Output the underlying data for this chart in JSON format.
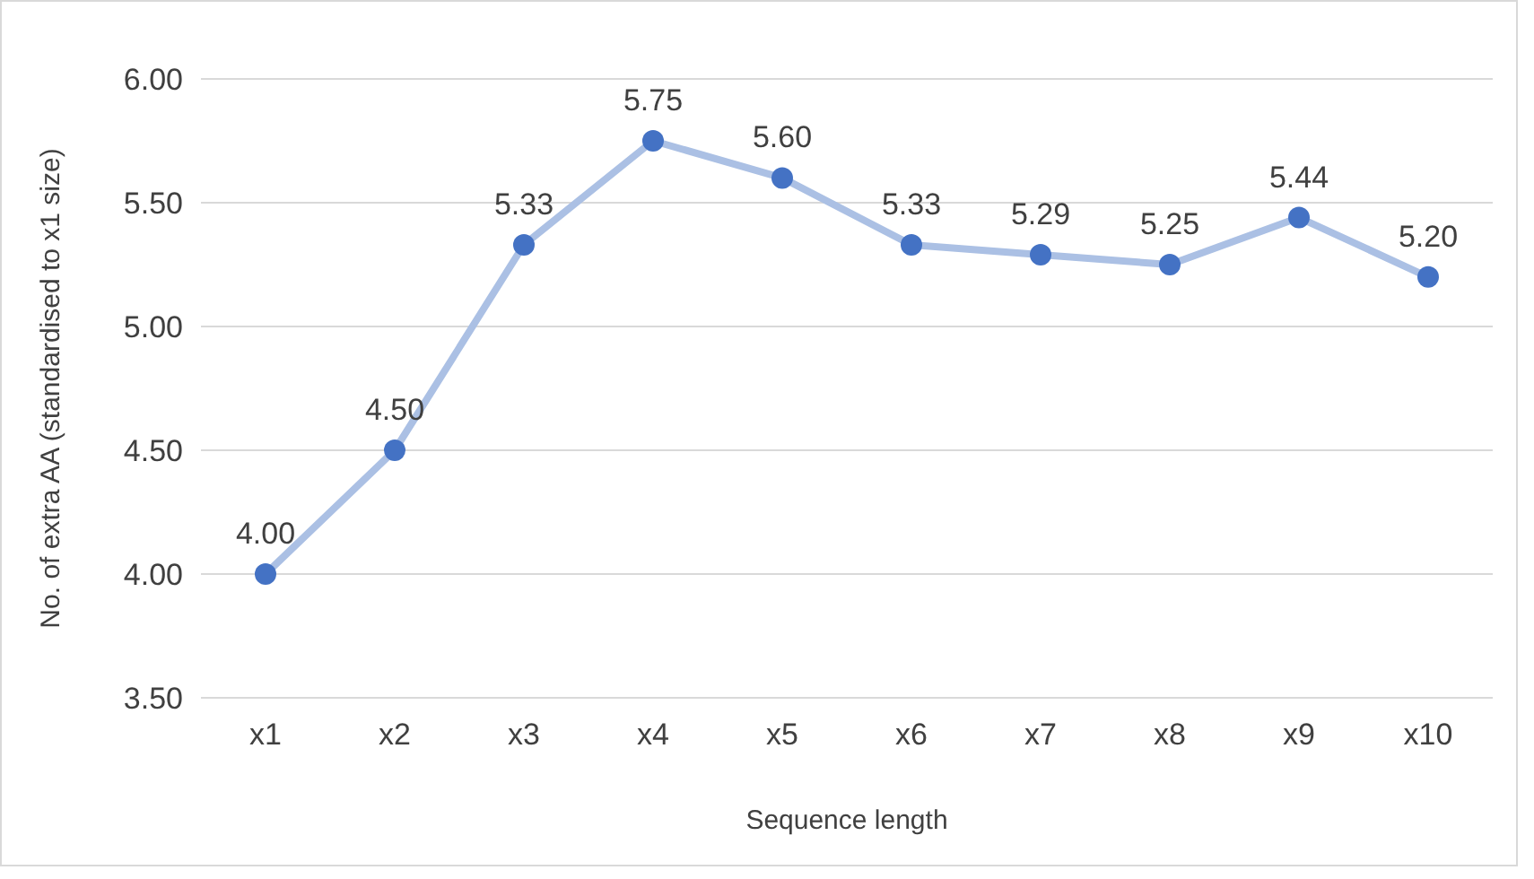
{
  "chart_data": {
    "type": "line",
    "xlabel": "Sequence length",
    "ylabel": "No. of extra AA (standardised to x1 size)",
    "categories": [
      "x1",
      "x2",
      "x3",
      "x4",
      "x5",
      "x6",
      "x7",
      "x8",
      "x9",
      "x10"
    ],
    "series": [
      {
        "color": "#4472c4",
        "values": [
          4.0,
          4.5,
          5.33,
          5.75,
          5.6,
          5.33,
          5.29,
          5.25,
          5.44,
          5.2
        ]
      }
    ],
    "ylim": [
      3.5,
      6
    ],
    "yticks": [
      {
        "value": 3.5,
        "label": "3.50"
      },
      {
        "value": 4,
        "label": "4.00"
      },
      {
        "value": 4.5,
        "label": "4.50"
      },
      {
        "value": 5,
        "label": "5.00"
      },
      {
        "value": 5.5,
        "label": "5.50"
      },
      {
        "value": 6,
        "label": "6.00"
      }
    ],
    "grid": "y",
    "marker": "circle",
    "line_style": "solid",
    "value_labels": [
      [
        "4.00",
        "4.50",
        "5.33",
        "5.75",
        "5.60",
        "5.33",
        "5.29",
        "5.25",
        "5.44",
        "5.20"
      ]
    ]
  }
}
